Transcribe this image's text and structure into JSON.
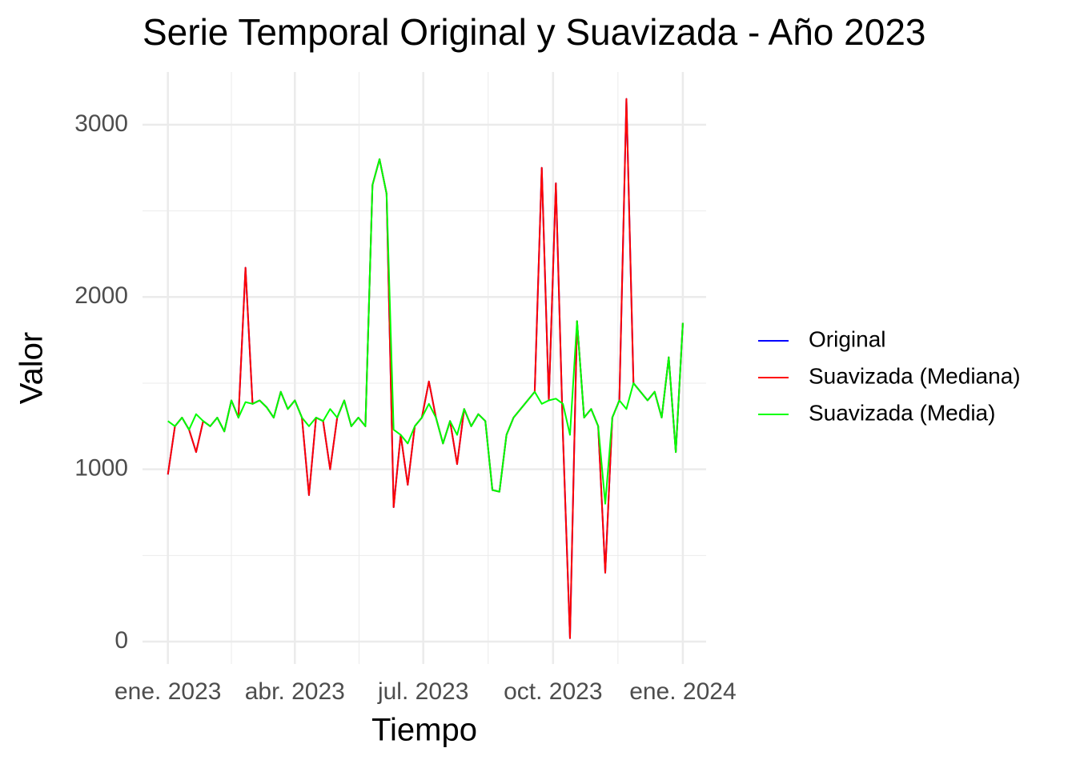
{
  "chart_data": {
    "type": "line",
    "title": "Serie Temporal Original y Suavizada - Año 2023",
    "x_label": "Tiempo",
    "y_label": "Valor",
    "x": [
      0,
      5,
      10,
      15,
      20,
      25,
      30,
      35,
      40,
      45,
      50,
      55,
      60,
      65,
      70,
      75,
      80,
      85,
      90,
      95,
      100,
      105,
      110,
      115,
      120,
      125,
      130,
      135,
      140,
      145,
      150,
      155,
      160,
      165,
      170,
      175,
      180,
      185,
      190,
      195,
      200,
      205,
      210,
      215,
      220,
      225,
      230,
      235,
      240,
      245,
      250,
      255,
      260,
      265,
      270,
      275,
      280,
      285,
      290,
      295,
      300,
      305,
      310,
      315,
      320,
      325,
      330,
      335,
      340,
      345,
      350,
      355,
      360,
      365
    ],
    "series": [
      {
        "name": "Original",
        "color": "#0000ff",
        "values": [
          970,
          1250,
          1300,
          1230,
          1100,
          1280,
          1250,
          1300,
          1220,
          1400,
          1300,
          2170,
          1380,
          1400,
          1360,
          1300,
          1450,
          1350,
          1400,
          1300,
          850,
          1300,
          1280,
          1000,
          1300,
          1400,
          1250,
          1300,
          1250,
          2650,
          2800,
          2600,
          780,
          1200,
          910,
          1250,
          1300,
          1510,
          1300,
          1150,
          1280,
          1030,
          1350,
          1250,
          1320,
          1280,
          880,
          870,
          1200,
          1300,
          1350,
          1400,
          1450,
          2750,
          1400,
          2660,
          1200,
          20,
          1860,
          1300,
          1350,
          1250,
          400,
          1300,
          1400,
          3150,
          1500,
          1450,
          1400,
          1450,
          1300,
          1650,
          1100,
          1850
        ]
      },
      {
        "name": "Suavizada (Mediana)",
        "color": "#ff0000",
        "values": [
          970,
          1250,
          1300,
          1230,
          1100,
          1280,
          1250,
          1300,
          1220,
          1400,
          1300,
          2170,
          1380,
          1400,
          1360,
          1300,
          1450,
          1350,
          1400,
          1300,
          850,
          1300,
          1280,
          1000,
          1300,
          1400,
          1250,
          1300,
          1250,
          2650,
          2800,
          2600,
          780,
          1200,
          910,
          1250,
          1300,
          1510,
          1300,
          1150,
          1280,
          1030,
          1350,
          1250,
          1320,
          1280,
          880,
          870,
          1200,
          1300,
          1350,
          1400,
          1450,
          2750,
          1400,
          2660,
          1200,
          20,
          1860,
          1300,
          1350,
          1250,
          400,
          1300,
          1400,
          3150,
          1500,
          1450,
          1400,
          1450,
          1300,
          1650,
          1100,
          1850
        ]
      },
      {
        "name": "Suavizada (Media)",
        "color": "#00ff00",
        "values": [
          1280,
          1250,
          1300,
          1230,
          1320,
          1280,
          1250,
          1300,
          1220,
          1400,
          1300,
          1390,
          1380,
          1400,
          1360,
          1300,
          1450,
          1350,
          1400,
          1300,
          1250,
          1300,
          1280,
          1350,
          1300,
          1400,
          1250,
          1300,
          1250,
          2650,
          2800,
          2600,
          1230,
          1200,
          1150,
          1250,
          1300,
          1380,
          1300,
          1150,
          1280,
          1200,
          1350,
          1250,
          1320,
          1280,
          880,
          870,
          1200,
          1300,
          1350,
          1400,
          1450,
          1380,
          1400,
          1410,
          1380,
          1200,
          1860,
          1300,
          1350,
          1250,
          800,
          1300,
          1400,
          1350,
          1500,
          1450,
          1400,
          1450,
          1300,
          1650,
          1100,
          1850
        ]
      }
    ],
    "xlim": [
      -18,
      381.5
    ],
    "xticks": [
      {
        "value": 0,
        "label": "ene. 2023"
      },
      {
        "value": 90,
        "label": "abr. 2023"
      },
      {
        "value": 181,
        "label": "jul. 2023"
      },
      {
        "value": 273,
        "label": "oct. 2023"
      },
      {
        "value": 365,
        "label": "ene. 2024"
      }
    ],
    "xminorticks": [
      45,
      135.5,
      227,
      319
    ],
    "ylim": [
      -130,
      3306
    ],
    "yticks": [
      0,
      1000,
      2000,
      3000
    ],
    "yminorticks": [
      500,
      1500,
      2500
    ],
    "grid": true,
    "legend": "right"
  }
}
